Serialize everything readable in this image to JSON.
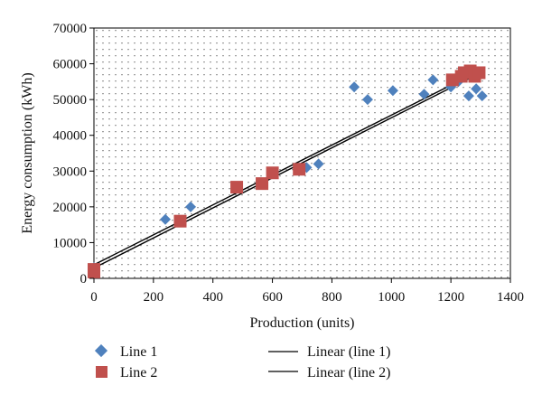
{
  "chart_data": {
    "type": "scatter",
    "title": "",
    "xlabel": "Production (units)",
    "ylabel": "Energy consumption (kWh)",
    "xlim": [
      0,
      1400
    ],
    "ylim": [
      0,
      70000
    ],
    "x_ticks": [
      0,
      200,
      400,
      600,
      800,
      1000,
      1200,
      1400
    ],
    "y_ticks": [
      0,
      10000,
      20000,
      30000,
      40000,
      50000,
      60000,
      70000
    ],
    "x_tick_labels": [
      "0",
      "200",
      "400",
      "600",
      "800",
      "1000",
      "1200",
      "1400"
    ],
    "y_tick_labels": [
      "0",
      "10000",
      "20000",
      "30000",
      "40000",
      "50000",
      "60000",
      "70000"
    ],
    "grid": "dotted",
    "legend_position": "bottom",
    "series": [
      {
        "name": "Line 1",
        "marker": "diamond",
        "color": "#4f81bd",
        "points": [
          [
            0,
            3000
          ],
          [
            240,
            16500
          ],
          [
            325,
            20000
          ],
          [
            715,
            31000
          ],
          [
            755,
            32000
          ],
          [
            875,
            53500
          ],
          [
            920,
            50000
          ],
          [
            1005,
            52500
          ],
          [
            1110,
            51500
          ],
          [
            1140,
            55500
          ],
          [
            1200,
            53500
          ],
          [
            1225,
            55000
          ],
          [
            1260,
            51000
          ],
          [
            1285,
            53000
          ],
          [
            1305,
            51000
          ]
        ]
      },
      {
        "name": "Line 2",
        "marker": "square",
        "color": "#c0504d",
        "points": [
          [
            0,
            2500
          ],
          [
            0,
            1800
          ],
          [
            290,
            16000
          ],
          [
            480,
            25500
          ],
          [
            565,
            26500
          ],
          [
            600,
            29500
          ],
          [
            690,
            30500
          ],
          [
            1205,
            55500
          ],
          [
            1235,
            56500
          ],
          [
            1245,
            57500
          ],
          [
            1265,
            58000
          ],
          [
            1280,
            56500
          ],
          [
            1295,
            57500
          ]
        ]
      }
    ],
    "trendlines": [
      {
        "name": "Linear (line 1)",
        "color": "#000000",
        "from": [
          0,
          3800
        ],
        "to": [
          1300,
          58200
        ]
      },
      {
        "name": "Linear (line 2)",
        "color": "#000000",
        "from": [
          0,
          2900
        ],
        "to": [
          1300,
          57500
        ]
      }
    ]
  }
}
